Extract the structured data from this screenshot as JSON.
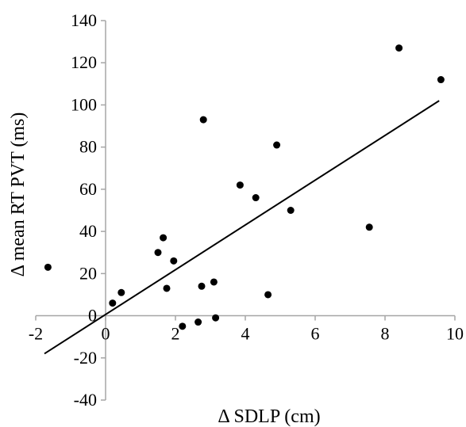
{
  "chart_data": {
    "type": "scatter",
    "title": "",
    "xlabel": "Δ SDLP (cm)",
    "ylabel": "Δ mean RT PVT (ms)",
    "xlim": [
      -2,
      10
    ],
    "ylim": [
      -40,
      140
    ],
    "x_ticks": [
      -2,
      0,
      2,
      4,
      6,
      8,
      10
    ],
    "y_ticks": [
      -40,
      -20,
      0,
      20,
      40,
      60,
      80,
      100,
      120,
      140
    ],
    "grid": false,
    "legend": "none",
    "point_color": "#000000",
    "series": [
      {
        "points": [
          {
            "x": -1.65,
            "y": 23
          },
          {
            "x": 0.2,
            "y": 6
          },
          {
            "x": 0.45,
            "y": 11
          },
          {
            "x": 1.5,
            "y": 30
          },
          {
            "x": 1.65,
            "y": 37
          },
          {
            "x": 1.75,
            "y": 13
          },
          {
            "x": 1.95,
            "y": 26
          },
          {
            "x": 2.2,
            "y": -5
          },
          {
            "x": 2.65,
            "y": -3
          },
          {
            "x": 2.75,
            "y": 14
          },
          {
            "x": 2.8,
            "y": 93
          },
          {
            "x": 3.1,
            "y": 16
          },
          {
            "x": 3.15,
            "y": -1
          },
          {
            "x": 3.85,
            "y": 62
          },
          {
            "x": 4.3,
            "y": 56
          },
          {
            "x": 4.65,
            "y": 10
          },
          {
            "x": 4.9,
            "y": 81
          },
          {
            "x": 5.3,
            "y": 50
          },
          {
            "x": 7.55,
            "y": 42
          },
          {
            "x": 8.4,
            "y": 127
          },
          {
            "x": 9.6,
            "y": 112
          }
        ]
      }
    ],
    "trendline": {
      "x": [
        -1.75,
        9.55
      ],
      "y": [
        -18,
        102
      ]
    }
  }
}
